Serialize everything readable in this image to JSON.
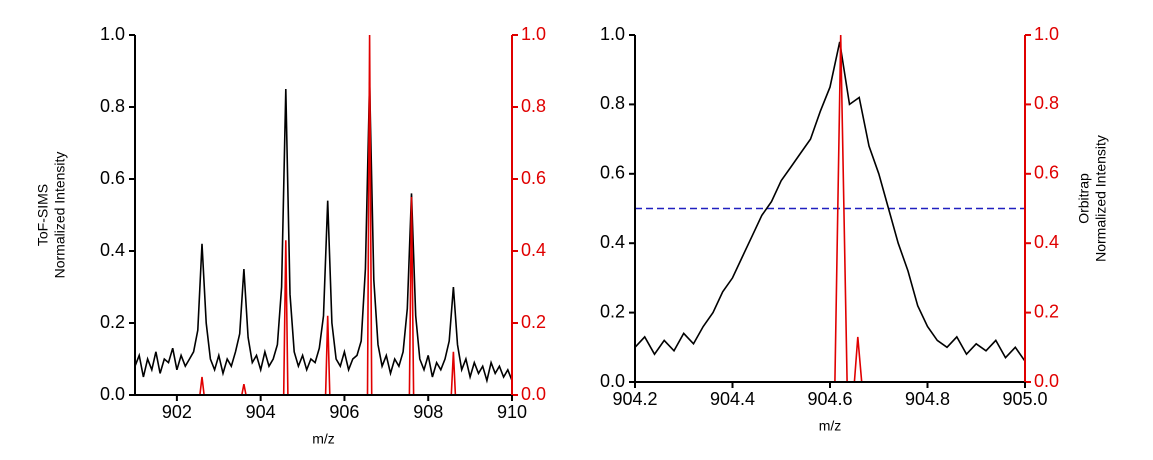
{
  "chart_data": [
    {
      "type": "line",
      "xlabel": "m/z",
      "ylabel": [
        "ToF-SIMS",
        "Normalized Intensity"
      ],
      "xlim": [
        901,
        910
      ],
      "xticks": [
        902,
        904,
        906,
        908,
        910
      ],
      "ylim": [
        0,
        1
      ],
      "yticks": [
        {
          "value": 0,
          "label": "0.0"
        },
        0.2,
        0.4,
        0.6,
        0.8,
        {
          "value": 1,
          "label": "1.0"
        }
      ],
      "y2lim": [
        0,
        1
      ],
      "y2ticks": [
        {
          "value": 0,
          "label": "0.0"
        },
        0.2,
        0.4,
        0.6,
        0.8,
        {
          "value": 1,
          "label": "1.0"
        }
      ],
      "series": [
        {
          "color": "#000000",
          "x": [
            901.0,
            901.1,
            901.2,
            901.3,
            901.4,
            901.5,
            901.6,
            901.7,
            901.8,
            901.9,
            902.0,
            902.1,
            902.2,
            902.3,
            902.4,
            902.5,
            902.6,
            902.7,
            902.8,
            902.9,
            903.0,
            903.1,
            903.2,
            903.3,
            903.4,
            903.5,
            903.6,
            903.7,
            903.8,
            903.9,
            904.0,
            904.1,
            904.2,
            904.3,
            904.4,
            904.5,
            904.6,
            904.7,
            904.8,
            904.9,
            905.0,
            905.1,
            905.2,
            905.3,
            905.4,
            905.5,
            905.6,
            905.7,
            905.8,
            905.9,
            906.0,
            906.1,
            906.2,
            906.3,
            906.4,
            906.5,
            906.6,
            906.7,
            906.8,
            906.9,
            907.0,
            907.1,
            907.2,
            907.3,
            907.4,
            907.5,
            907.6,
            907.7,
            907.8,
            907.9,
            908.0,
            908.1,
            908.2,
            908.3,
            908.4,
            908.5,
            908.6,
            908.7,
            908.8,
            908.9,
            909.0,
            909.1,
            909.2,
            909.3,
            909.4,
            909.5,
            909.6,
            909.7,
            909.8,
            909.9,
            910.0
          ],
          "values": [
            0.08,
            0.11,
            0.05,
            0.1,
            0.07,
            0.12,
            0.06,
            0.1,
            0.09,
            0.13,
            0.07,
            0.11,
            0.08,
            0.1,
            0.12,
            0.18,
            0.42,
            0.2,
            0.1,
            0.07,
            0.11,
            0.06,
            0.1,
            0.08,
            0.12,
            0.17,
            0.35,
            0.16,
            0.09,
            0.11,
            0.07,
            0.12,
            0.08,
            0.1,
            0.14,
            0.3,
            0.85,
            0.28,
            0.12,
            0.08,
            0.11,
            0.07,
            0.1,
            0.09,
            0.13,
            0.22,
            0.54,
            0.2,
            0.1,
            0.08,
            0.12,
            0.07,
            0.1,
            0.11,
            0.15,
            0.35,
            0.87,
            0.32,
            0.14,
            0.08,
            0.11,
            0.06,
            0.1,
            0.08,
            0.12,
            0.24,
            0.56,
            0.22,
            0.1,
            0.07,
            0.11,
            0.05,
            0.09,
            0.07,
            0.1,
            0.15,
            0.3,
            0.14,
            0.07,
            0.1,
            0.05,
            0.09,
            0.06,
            0.08,
            0.04,
            0.09,
            0.06,
            0.08,
            0.05,
            0.07,
            0.04
          ]
        },
        {
          "color": "#e00000",
          "axis": "y2",
          "x": [
            901.0,
            902.55,
            902.6,
            902.65,
            903.55,
            903.6,
            903.65,
            904.55,
            904.6,
            904.65,
            905.55,
            905.6,
            905.65,
            906.55,
            906.6,
            906.65,
            907.55,
            907.6,
            907.65,
            908.55,
            908.6,
            908.65,
            910.0
          ],
          "values": [
            0,
            0,
            0.05,
            0,
            0,
            0.03,
            0,
            0,
            0.43,
            0,
            0,
            0.22,
            0,
            0,
            1.0,
            0,
            0,
            0.55,
            0,
            0,
            0.12,
            0,
            0
          ]
        }
      ]
    },
    {
      "type": "line",
      "xlabel": "m/z",
      "y2label": [
        "Orbitrap",
        "Normalized Intensity"
      ],
      "xlim": [
        904.2,
        905
      ],
      "xticks": [
        904.2,
        904.4,
        904.6,
        904.8,
        {
          "value": 905,
          "label": "905.0"
        }
      ],
      "ylim": [
        0,
        1
      ],
      "yticks": [
        {
          "value": 0,
          "label": "0.0"
        },
        0.2,
        0.4,
        0.6,
        0.8,
        {
          "value": 1,
          "label": "1.0"
        }
      ],
      "y2lim": [
        0,
        1
      ],
      "y2ticks": [
        {
          "value": 0,
          "label": "0.0"
        },
        0.2,
        0.4,
        0.6,
        0.8,
        {
          "value": 1,
          "label": "1.0"
        }
      ],
      "hline": {
        "value": 0.5,
        "color": "#2020c0"
      },
      "series": [
        {
          "color": "#000000",
          "x": [
            904.2,
            904.22,
            904.24,
            904.26,
            904.28,
            904.3,
            904.32,
            904.34,
            904.36,
            904.38,
            904.4,
            904.42,
            904.44,
            904.46,
            904.48,
            904.5,
            904.52,
            904.54,
            904.56,
            904.58,
            904.6,
            904.62,
            904.64,
            904.66,
            904.68,
            904.7,
            904.72,
            904.74,
            904.76,
            904.78,
            904.8,
            904.82,
            904.84,
            904.86,
            904.88,
            904.9,
            904.92,
            904.94,
            904.96,
            904.98,
            905.0
          ],
          "values": [
            0.1,
            0.13,
            0.08,
            0.12,
            0.09,
            0.14,
            0.11,
            0.16,
            0.2,
            0.26,
            0.3,
            0.36,
            0.42,
            0.48,
            0.52,
            0.58,
            0.62,
            0.66,
            0.7,
            0.78,
            0.85,
            0.98,
            0.8,
            0.82,
            0.68,
            0.6,
            0.5,
            0.4,
            0.32,
            0.22,
            0.16,
            0.12,
            0.1,
            0.13,
            0.08,
            0.11,
            0.09,
            0.12,
            0.07,
            0.1,
            0.06
          ]
        },
        {
          "color": "#e00000",
          "axis": "y2",
          "x": [
            904.2,
            904.61,
            904.622,
            904.635,
            904.65,
            904.657,
            904.665,
            905.0
          ],
          "values": [
            0,
            0,
            1.0,
            0,
            0,
            0.13,
            0,
            0
          ]
        }
      ]
    }
  ]
}
